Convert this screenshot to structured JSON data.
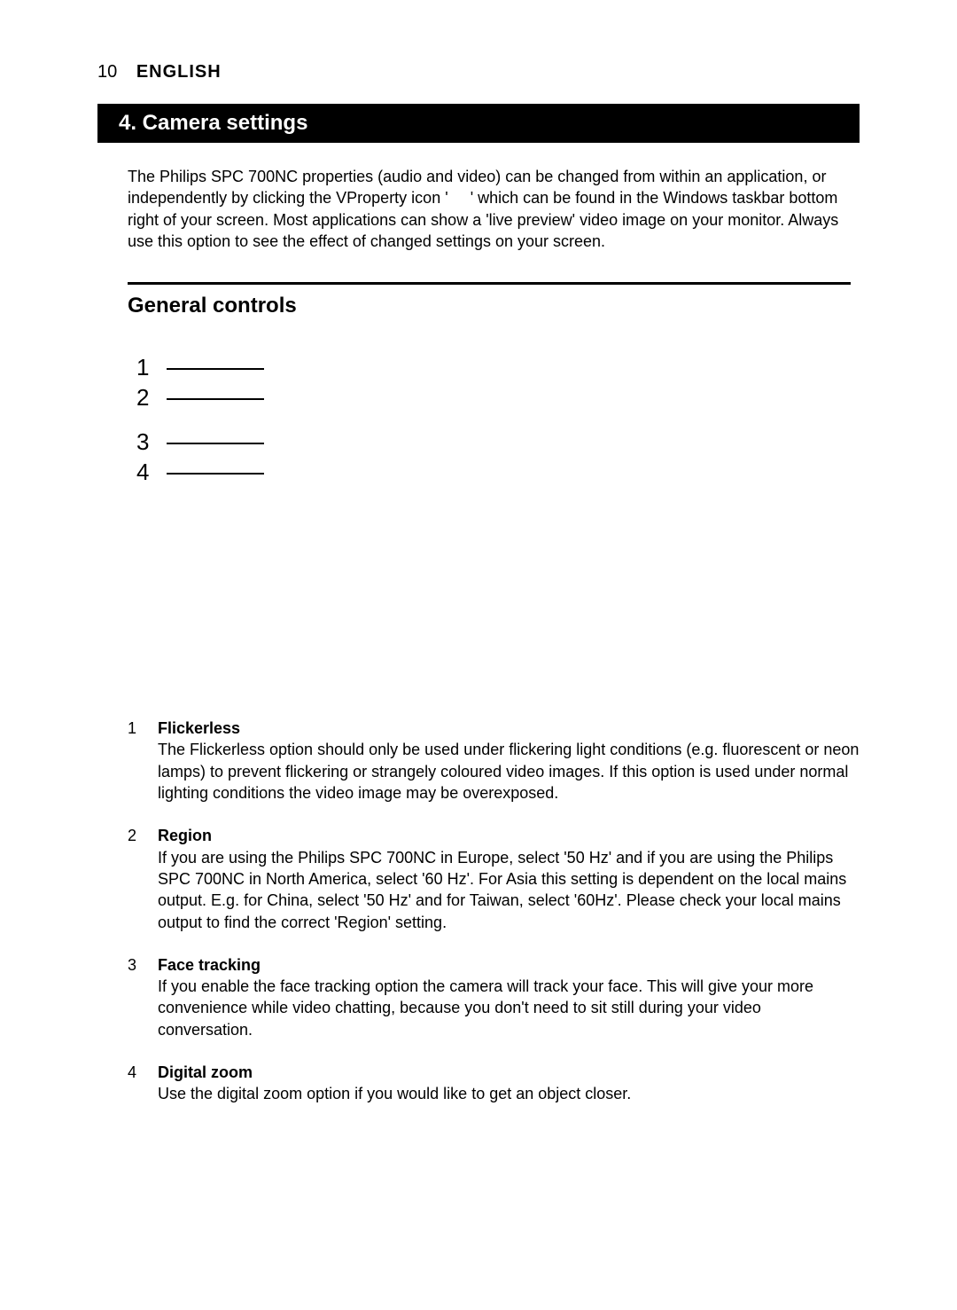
{
  "page": {
    "number": "10",
    "language": "ENGLISH"
  },
  "section_bar": "4. Camera settings",
  "intro_parts": {
    "a": "The Philips SPC 700NC properties (audio and video) can be changed from within an application, or independently by clicking the VProperty icon '",
    "b": "' which can be found in the Windows taskbar bottom right of your screen. Most applications can show a 'live preview' video image on your monitor. Always use this option to see the effect of changed settings on your screen."
  },
  "subheading": "General controls",
  "diagram_numbers": [
    "1",
    "2",
    "3",
    "4"
  ],
  "items": [
    {
      "num": "1",
      "title": "Flickerless",
      "body": "The Flickerless option should only be used under flickering light conditions (e.g. fluorescent or neon lamps) to prevent flickering or strangely coloured video images. If this option is used under normal lighting conditions the video image may be overexposed."
    },
    {
      "num": "2",
      "title": "Region",
      "body": "If you are using the Philips SPC 700NC in Europe, select '50 Hz' and if you are using the Philips SPC 700NC in North America, select '60 Hz'. For Asia this setting is dependent on the local mains output. E.g. for China, select '50 Hz' and for Taiwan, select '60Hz'. Please check your local mains output to find the correct 'Region' setting."
    },
    {
      "num": "3",
      "title": "Face tracking",
      "body": "If you enable the face tracking option the camera will track your face. This will give your more convenience while video chatting, because you don't need to sit still during your video conversation."
    },
    {
      "num": "4",
      "title": "Digital zoom",
      "body": "Use the digital zoom option if you would like to get an object closer."
    }
  ]
}
